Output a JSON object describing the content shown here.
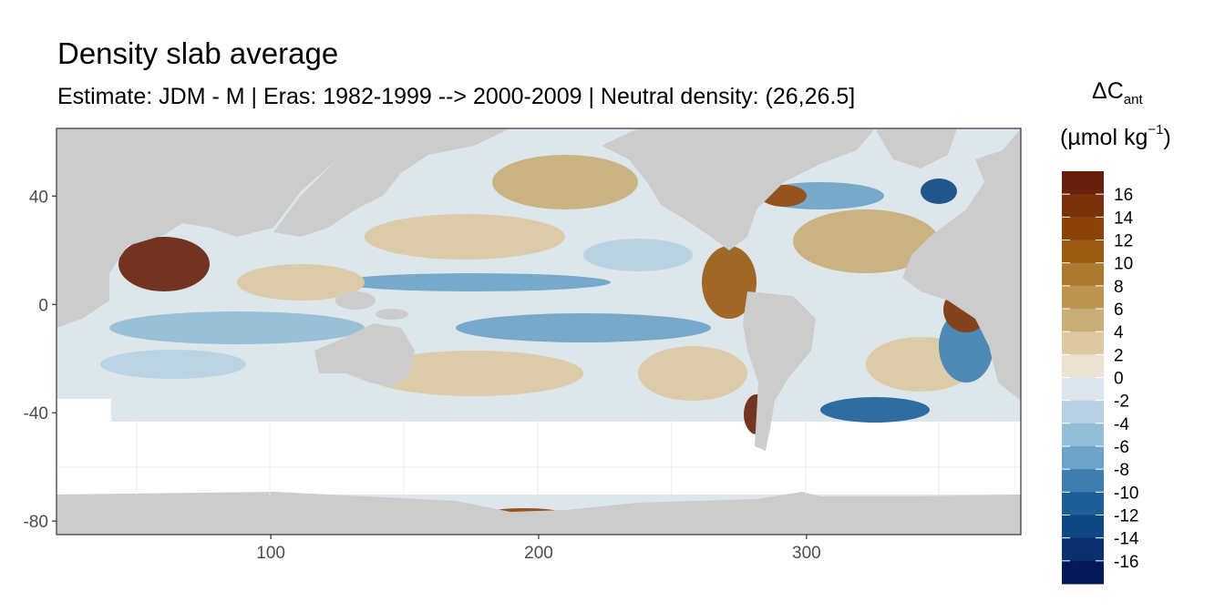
{
  "title": "Density slab average",
  "subtitle": "Estimate: JDM - M | Eras: 1982-1999 --> 2000-2009 | Neutral density: (26,26.5]",
  "legend": {
    "symbol_main": "ΔC",
    "symbol_sub": "ant",
    "unit_main": "(µmol kg",
    "unit_sup": "−1",
    "unit_close": ")",
    "labels": [
      "16",
      "14",
      "12",
      "10",
      "8",
      "6",
      "4",
      "2",
      "0",
      "-2",
      "-4",
      "-6",
      "-8",
      "-10",
      "-12",
      "-14",
      "-16"
    ],
    "colors": [
      "#67200c",
      "#7a3008",
      "#8c4309",
      "#9a5a12",
      "#ab7a2e",
      "#bb9450",
      "#c9ad78",
      "#dcc9a2",
      "#eae3d3",
      "#dce6ec",
      "#b7d1e2",
      "#93bcd6",
      "#6da3c8",
      "#3f7fb0",
      "#1d5f99",
      "#0e4784",
      "#0a2f6c",
      "#04185a"
    ]
  },
  "chart_data": {
    "type": "heatmap",
    "title": "Density slab average",
    "subtitle": "Estimate: JDM - M | Eras: 1982-1999 --> 2000-2009 | Neutral density: (26,26.5]",
    "xlabel": "",
    "ylabel": "",
    "x_ticks": [
      100,
      200,
      300
    ],
    "y_ticks": [
      40,
      0,
      -40,
      -80
    ],
    "xlim": [
      20,
      380
    ],
    "ylim": [
      -85,
      65
    ],
    "grid": true,
    "legend_position": "right",
    "colorbar_ticks": [
      16,
      14,
      12,
      10,
      8,
      6,
      4,
      2,
      0,
      -2,
      -4,
      -6,
      -8,
      -10,
      -12,
      -14,
      -16
    ],
    "land_color": "#cccccc",
    "no_data_color": "#ffffff",
    "color_low": "#04185a",
    "color_mid": "#eae3d3",
    "color_high": "#67200c"
  }
}
